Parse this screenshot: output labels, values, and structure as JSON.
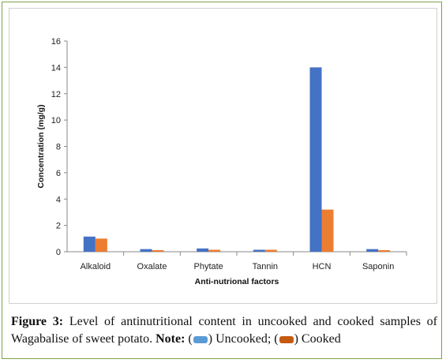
{
  "chart_data": {
    "type": "bar",
    "categories": [
      "Alkaloid",
      "Oxalate",
      "Phytate",
      "Tannin",
      "HCN",
      "Saponin"
    ],
    "series": [
      {
        "name": "Uncooked",
        "color": "#4472c4",
        "values": [
          1.15,
          0.2,
          0.25,
          0.15,
          14.0,
          0.2
        ]
      },
      {
        "name": "Cooked",
        "color": "#ed7d31",
        "values": [
          1.0,
          0.12,
          0.15,
          0.15,
          3.2,
          0.12
        ]
      }
    ],
    "title": "",
    "xlabel": "Anti-nutrional factors",
    "ylabel": "Concentration (mg/g)",
    "ylim": [
      0,
      16
    ],
    "yticks": [
      0,
      2,
      4,
      6,
      8,
      10,
      12,
      14,
      16
    ],
    "grid": false
  },
  "caption": {
    "label": "Figure 3:",
    "text": " Level of antinutritional content in uncooked and cooked samples of Wagabalise of sweet potato.",
    "note_label": "Note:",
    "legend_open": "(",
    "legend_close_uncooked": ") Uncooked; (",
    "legend_close_cooked": ") Cooked",
    "uncooked_color": "#5b9bd5",
    "cooked_color": "#c55a11"
  }
}
